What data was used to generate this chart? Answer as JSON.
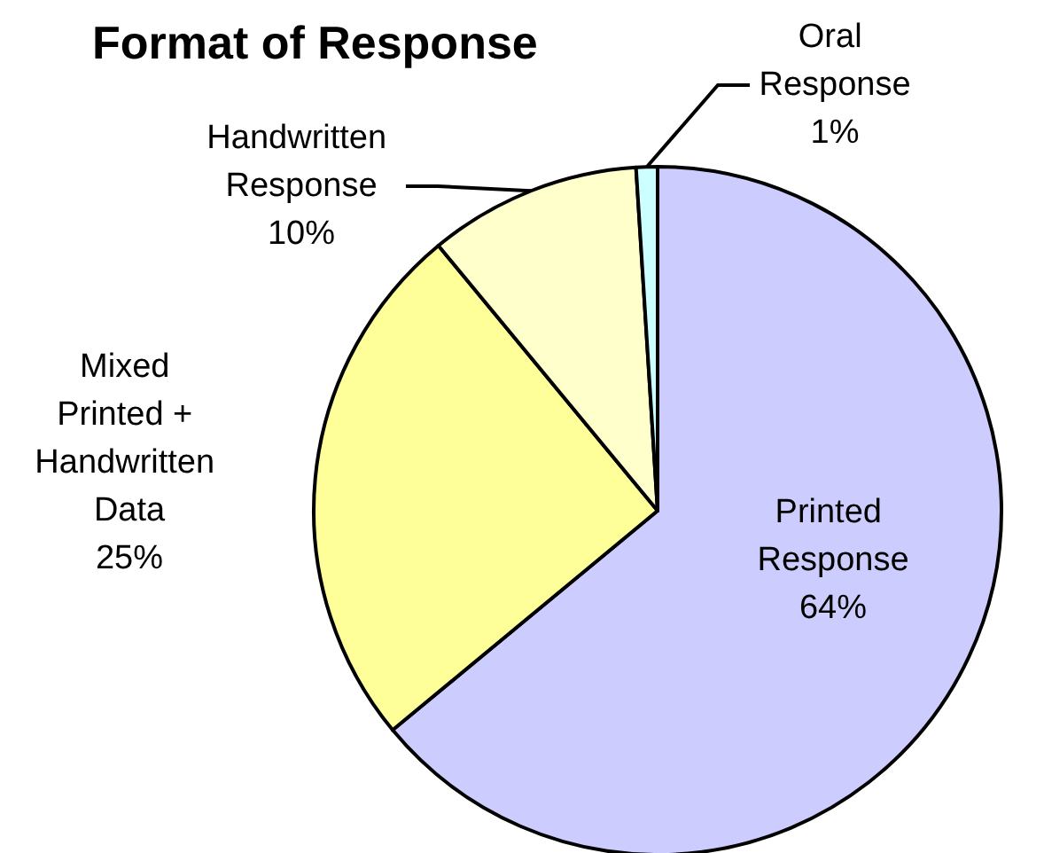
{
  "chart_data": {
    "type": "pie",
    "title": "Format of Response",
    "categories": [
      "Printed Response",
      "Mixed Printed + Handwritten Data",
      "Handwritten Response",
      "Oral Response"
    ],
    "values": [
      64,
      25,
      10,
      1
    ],
    "value_labels": [
      "64%",
      "25%",
      "10%",
      "1%"
    ],
    "colors": [
      "#ccccff",
      "#ffff99",
      "#ffffcc",
      "#ccffff"
    ]
  }
}
